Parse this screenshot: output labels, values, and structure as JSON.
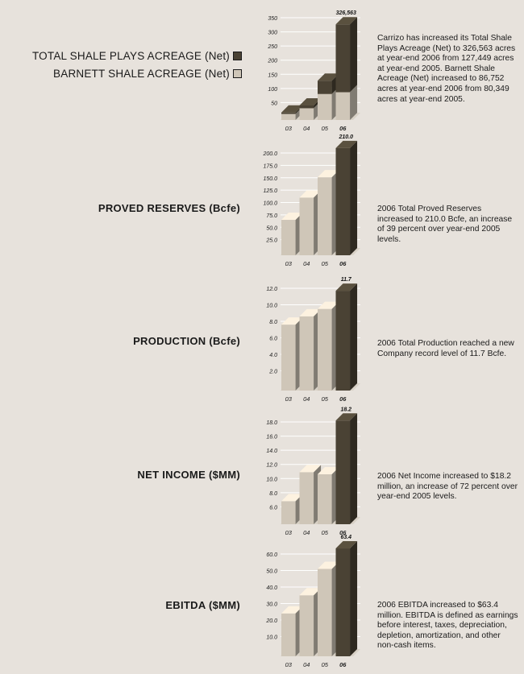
{
  "legend": {
    "total_label": "TOTAL SHALE PLAYS ACREAGE (Net)",
    "barnett_label": "BARNETT SHALE ACREAGE (Net)"
  },
  "titles": {
    "proved": "PROVED RESERVES (Bcfe)",
    "production": "PRODUCTION (Bcfe)",
    "net_income": "NET INCOME ($MM)",
    "ebitda": "EBITDA ($MM)"
  },
  "descriptions": {
    "acreage": "Carrizo has increased its Total Shale Plays Acreage (Net) to 326,563 acres at year-end 2006 from 127,449 acres at year-end 2005.  Barnett Shale Acreage (Net) increased to 86,752 acres at year-end 2006 from 80,349 acres at year-end 2005.",
    "proved": "2006 Total Proved Reserves increased to 210.0 Bcfe, an increase of 39 percent over year-end 2005 levels.",
    "production": "2006 Total Production reached a new Company record level of 11.7 Bcfe.",
    "net_income": "2006 Net Income increased to $18.2 million, an increase of 72 percent over year-end 2005 levels.",
    "ebitda": "2006 EBITDA increased to $63.4 million.  EBITDA is defined as earnings before interest, taxes, depreciation, depletion, amortization, and other non-cash items."
  },
  "colors": {
    "background": "#e7e2dc",
    "light_bar": "#cfc6b8",
    "dark_bar": "#4a4234",
    "gridline": "#ffffff"
  },
  "chart_data": [
    {
      "type": "bar",
      "categories": [
        "03",
        "04",
        "05",
        "06"
      ],
      "series": [
        {
          "name": "TOTAL SHALE PLAYS ACREAGE (Net)",
          "values": [
            15,
            40,
            127.449,
            326.563
          ]
        },
        {
          "name": "BARNETT SHALE ACREAGE (Net)",
          "values": [
            10,
            30,
            80.349,
            86.752
          ]
        }
      ],
      "value_label": "326,563",
      "y_ticks": [
        "350",
        "300",
        "250",
        "200",
        "150",
        "100",
        "50"
      ],
      "ylim": [
        0,
        350
      ]
    },
    {
      "type": "bar",
      "categories": [
        "03",
        "04",
        "05",
        "06"
      ],
      "values": [
        65,
        110,
        151,
        210
      ],
      "value_label": "210.0",
      "y_ticks": [
        "200.0",
        "175.0",
        "150.0",
        "125.0",
        "100.0",
        "75.0",
        "50.0",
        "25.0"
      ],
      "ylim": [
        0,
        200
      ]
    },
    {
      "type": "bar",
      "categories": [
        "03",
        "04",
        "05",
        "06"
      ],
      "values": [
        7.6,
        8.6,
        9.5,
        11.7
      ],
      "value_label": "11.7",
      "y_ticks": [
        "12.0",
        "10.0",
        "8.0",
        "6.0",
        "4.0",
        "2.0"
      ],
      "ylim": [
        0,
        12
      ]
    },
    {
      "type": "bar",
      "categories": [
        "03",
        "04",
        "05",
        "06"
      ],
      "values": [
        6.8,
        10.9,
        10.6,
        18.2
      ],
      "value_label": "18.2",
      "y_ticks": [
        "18.0",
        "16.0",
        "14.0",
        "12.0",
        "10.0",
        "8.0",
        "6.0"
      ],
      "ylim": [
        4,
        18
      ]
    },
    {
      "type": "bar",
      "categories": [
        "03",
        "04",
        "05",
        "06"
      ],
      "values": [
        24,
        35,
        51,
        63.4
      ],
      "value_label": "63.4",
      "y_ticks": [
        "60.0",
        "50.0",
        "40.0",
        "30.0",
        "20.0",
        "10.0"
      ],
      "ylim": [
        0,
        60
      ]
    }
  ]
}
